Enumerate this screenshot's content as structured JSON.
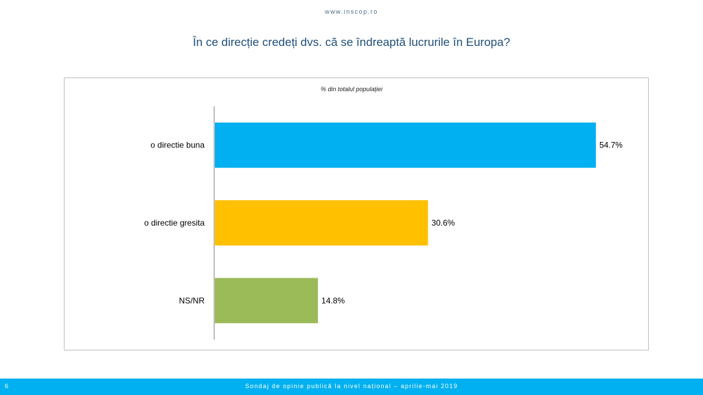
{
  "header": {
    "site_url": "www.inscop.ro",
    "title": "În ce direcție credeți dvs. că se îndreaptă lucrurile în Europa?"
  },
  "chart_data": {
    "type": "bar",
    "orientation": "horizontal",
    "subtitle": "% din totalul populației",
    "categories": [
      "o directie buna",
      "o directie gresita",
      "NS/NR"
    ],
    "values": [
      54.7,
      30.6,
      14.8
    ],
    "value_labels": [
      "54.7%",
      "30.6%",
      "14.8%"
    ],
    "colors": [
      "#00b0f0",
      "#ffc000",
      "#9bbb59"
    ],
    "xlim": [
      0,
      55
    ],
    "grid": false,
    "legend": "none"
  },
  "footer": {
    "page_number": "6",
    "text": "Sondaj de opinie publică la nivel național – aprilie-mai 2019",
    "color": "#00b0f0"
  }
}
